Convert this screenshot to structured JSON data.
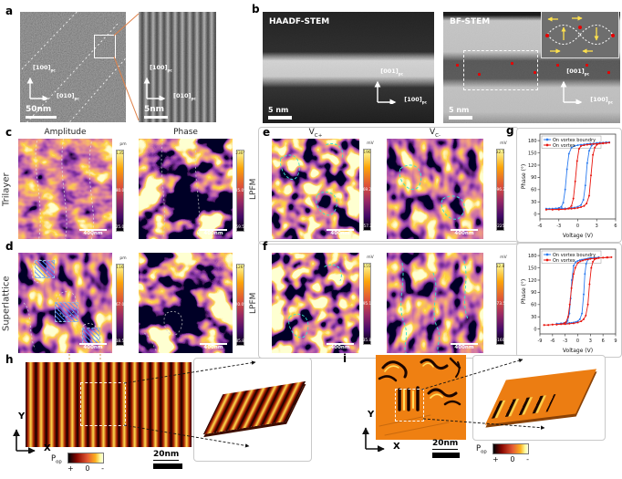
{
  "panels": {
    "a": {
      "label": "a",
      "main": {
        "axis_v": "[100]",
        "axis_v_sub": "pc",
        "axis_h": "[010]",
        "axis_h_sub": "pc",
        "scalebar": "50nm"
      },
      "inset": {
        "axis_v": "[100]",
        "axis_v_sub": "pc",
        "axis_h": "[010]",
        "axis_h_sub": "pc",
        "scalebar": "5nm"
      }
    },
    "b": {
      "label": "b",
      "haadf": {
        "title": "HAADF-STEM",
        "scalebar": "5 nm",
        "axis_v": "[001]",
        "axis_v_sub": "pc",
        "axis_h": "[100]",
        "axis_h_sub": "pc"
      },
      "bf": {
        "title": "BF-STEM",
        "scalebar": "5 nm",
        "axis_v": "[001]",
        "axis_v_sub": "pc",
        "axis_h": "[100]",
        "axis_h_sub": "pc"
      }
    },
    "c": {
      "label": "c",
      "row_label": "Trilayer",
      "amplitude_title": "Amplitude",
      "phase_title": "Phase",
      "amp_cb": {
        "unit": "pm",
        "max": "135",
        "mid": "80.0",
        "min": "25.0"
      },
      "phase_cb": {
        "max": "230°",
        "mid": "85.0°",
        "min": "-59.5°"
      },
      "scalebar": "400nm"
    },
    "d": {
      "label": "d",
      "row_label": "Superlattice",
      "amp_cb": {
        "unit": "pm",
        "max": "116",
        "mid": "67.0",
        "min": "18.5"
      },
      "phase_cb": {
        "max": "126°",
        "mid": "20.0°",
        "min": "-85.8°"
      },
      "scalebar": "400nm"
    },
    "e": {
      "label": "e",
      "row_label": "LPFM",
      "map1_title": "V",
      "map1_title_sub": "C+",
      "map2_title": "V",
      "map2_title_sub": "C-",
      "cb1": {
        "unit": "mV",
        "max": "196",
        "mid": "69.2",
        "min": "-57.2"
      },
      "cb2": {
        "unit": "mV",
        "max": "32.5",
        "mid": "-96.2",
        "min": "-225"
      },
      "scalebar": "400nm"
    },
    "f": {
      "label": "f",
      "row_label": "LPFM",
      "cb1": {
        "unit": "mV",
        "max": "155",
        "mid": "95.1",
        "min": "35.8"
      },
      "cb2": {
        "unit": "mV",
        "max": "12.8",
        "mid": "-73.5",
        "min": "-160"
      },
      "scalebar": "400nm"
    },
    "g": {
      "label": "g"
    },
    "h": {
      "label": "h",
      "axis_y": "Y",
      "axis_x": "X",
      "scalebar": "20nm",
      "pol": "P",
      "pol_sub": "op",
      "cb_plus": "+",
      "cb_zero": "0",
      "cb_minus": "-"
    },
    "i": {
      "label": "i",
      "axis_y": "Y",
      "axis_x": "X",
      "scalebar": "20nm",
      "pol": "P",
      "pol_sub": "op",
      "cb_plus": "+",
      "cb_zero": "0",
      "cb_minus": "-"
    }
  },
  "chart_data": [
    {
      "type": "line",
      "title": "",
      "xlabel": "Voltage (V)",
      "ylabel": "Phase (°)",
      "xlim": [
        -6,
        6
      ],
      "ylim": [
        -12,
        196
      ],
      "xticks": [
        -6,
        -3,
        0,
        3,
        6
      ],
      "yticks": [
        0,
        30,
        60,
        90,
        120,
        150,
        180
      ],
      "grid": false,
      "legend_position": "top-left",
      "series": [
        {
          "name": "On vortex boundry",
          "color": "#2b7bf0",
          "points": [
            [
              -5,
              13
            ],
            [
              -4,
              13
            ],
            [
              -3,
              13
            ],
            [
              -2.5,
              14
            ],
            [
              -2,
              14
            ],
            [
              -1.5,
              14
            ],
            [
              -1,
              15
            ],
            [
              -0.5,
              16
            ],
            [
              0,
              18
            ],
            [
              0.5,
              22
            ],
            [
              0.9,
              35
            ],
            [
              1.2,
              70
            ],
            [
              1.5,
              125
            ],
            [
              1.8,
              155
            ],
            [
              2.2,
              168
            ],
            [
              2.6,
              172
            ],
            [
              3,
              174
            ],
            [
              3.5,
              175
            ],
            [
              4,
              175
            ],
            [
              4.5,
              176
            ],
            [
              5,
              176
            ],
            [
              4.5,
              175
            ],
            [
              4,
              175
            ],
            [
              3.5,
              174
            ],
            [
              3,
              174
            ],
            [
              2.5,
              173
            ],
            [
              2,
              173
            ],
            [
              1.5,
              172
            ],
            [
              1,
              171
            ],
            [
              0.5,
              170
            ],
            [
              0,
              169
            ],
            [
              -0.5,
              167
            ],
            [
              -1,
              163
            ],
            [
              -1.4,
              148
            ],
            [
              -1.7,
              110
            ],
            [
              -2,
              60
            ],
            [
              -2.3,
              28
            ],
            [
              -2.6,
              18
            ],
            [
              -3,
              15
            ],
            [
              -3.5,
              14
            ],
            [
              -4,
              13
            ],
            [
              -4.5,
              13
            ],
            [
              -5,
              13
            ]
          ]
        },
        {
          "name": "On vortex",
          "color": "#e8150d",
          "points": [
            [
              -5,
              11
            ],
            [
              -4,
              11
            ],
            [
              -3,
              12
            ],
            [
              -2,
              12
            ],
            [
              -1.5,
              13
            ],
            [
              -1,
              13
            ],
            [
              -0.5,
              14
            ],
            [
              0,
              15
            ],
            [
              0.5,
              17
            ],
            [
              1,
              20
            ],
            [
              1.4,
              26
            ],
            [
              1.8,
              45
            ],
            [
              2.1,
              95
            ],
            [
              2.4,
              145
            ],
            [
              2.7,
              163
            ],
            [
              3,
              170
            ],
            [
              3.5,
              173
            ],
            [
              4,
              174
            ],
            [
              4.5,
              174
            ],
            [
              5,
              175
            ],
            [
              4.5,
              174
            ],
            [
              4,
              173
            ],
            [
              3.5,
              173
            ],
            [
              3,
              172
            ],
            [
              2.5,
              172
            ],
            [
              2,
              171
            ],
            [
              1.5,
              170
            ],
            [
              1,
              169
            ],
            [
              0.5,
              167
            ],
            [
              0.2,
              160
            ],
            [
              -0.1,
              130
            ],
            [
              -0.4,
              80
            ],
            [
              -0.7,
              38
            ],
            [
              -1,
              20
            ],
            [
              -1.4,
              14
            ],
            [
              -2,
              12
            ],
            [
              -3,
              11
            ],
            [
              -4,
              11
            ],
            [
              -5,
              11
            ]
          ]
        }
      ]
    },
    {
      "type": "line",
      "title": "",
      "xlabel": "Voltage (V)",
      "ylabel": "Phase (°)",
      "xlim": [
        -9,
        9
      ],
      "ylim": [
        -12,
        196
      ],
      "xticks": [
        -9,
        -6,
        -3,
        0,
        3,
        6,
        9
      ],
      "yticks": [
        0,
        30,
        60,
        90,
        120,
        150,
        180
      ],
      "grid": false,
      "legend_position": "top-left",
      "series": [
        {
          "name": "On vortex boundry",
          "color": "#2b7bf0",
          "points": [
            [
              -5,
              13
            ],
            [
              -4,
              13
            ],
            [
              -3,
              14
            ],
            [
              -2.5,
              14
            ],
            [
              -2,
              15
            ],
            [
              -1.5,
              15
            ],
            [
              -1,
              16
            ],
            [
              -0.5,
              17
            ],
            [
              0,
              19
            ],
            [
              0.5,
              24
            ],
            [
              1,
              38
            ],
            [
              1.4,
              85
            ],
            [
              1.7,
              135
            ],
            [
              2,
              160
            ],
            [
              2.4,
              170
            ],
            [
              2.8,
              173
            ],
            [
              3.2,
              174
            ],
            [
              4,
              175
            ],
            [
              5,
              176
            ],
            [
              4,
              175
            ],
            [
              3,
              174
            ],
            [
              2.5,
              173
            ],
            [
              2,
              172
            ],
            [
              1.5,
              171
            ],
            [
              1,
              170
            ],
            [
              0.5,
              169
            ],
            [
              0,
              167
            ],
            [
              -0.5,
              164
            ],
            [
              -1,
              155
            ],
            [
              -1.4,
              120
            ],
            [
              -1.7,
              75
            ],
            [
              -2,
              38
            ],
            [
              -2.4,
              20
            ],
            [
              -2.8,
              16
            ],
            [
              -3.2,
              15
            ],
            [
              -4,
              14
            ],
            [
              -5,
              13
            ]
          ]
        },
        {
          "name": "On vortex",
          "color": "#e8150d",
          "points": [
            [
              -8,
              10
            ],
            [
              -7,
              10
            ],
            [
              -6,
              11
            ],
            [
              -5,
              11
            ],
            [
              -4,
              12
            ],
            [
              -3,
              12
            ],
            [
              -2,
              13
            ],
            [
              -1,
              14
            ],
            [
              0,
              16
            ],
            [
              0.8,
              19
            ],
            [
              1.4,
              24
            ],
            [
              1.9,
              33
            ],
            [
              2.4,
              60
            ],
            [
              2.8,
              110
            ],
            [
              3.2,
              150
            ],
            [
              3.6,
              165
            ],
            [
              4,
              171
            ],
            [
              4.5,
              173
            ],
            [
              5,
              174
            ],
            [
              6,
              175
            ],
            [
              7,
              176
            ],
            [
              8,
              176
            ],
            [
              7,
              175
            ],
            [
              6,
              175
            ],
            [
              5,
              174
            ],
            [
              4,
              173
            ],
            [
              3,
              172
            ],
            [
              2.4,
              171
            ],
            [
              1.8,
              170
            ],
            [
              1.2,
              168
            ],
            [
              0.6,
              166
            ],
            [
              0,
              162
            ],
            [
              -0.6,
              150
            ],
            [
              -1,
              135
            ],
            [
              -1.5,
              100
            ],
            [
              -1.9,
              60
            ],
            [
              -2.3,
              30
            ],
            [
              -2.8,
              17
            ],
            [
              -3.2,
              14
            ],
            [
              -4,
              12
            ],
            [
              -5,
              11
            ],
            [
              -6,
              11
            ],
            [
              -7,
              10
            ],
            [
              -8,
              10
            ]
          ]
        }
      ]
    }
  ]
}
